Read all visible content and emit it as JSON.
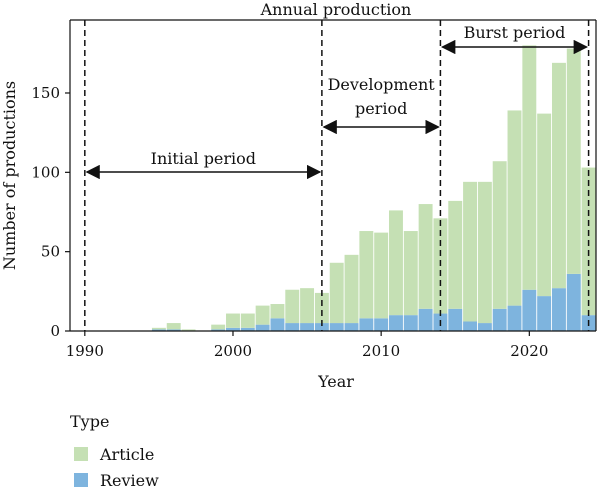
{
  "chart_data": {
    "type": "bar",
    "title": "Annual production",
    "xlabel": "Year",
    "ylabel": "Number of productions",
    "xlim": [
      1989,
      2024.5
    ],
    "ylim": [
      0,
      196
    ],
    "xticks": [
      1990,
      2000,
      2010,
      2020
    ],
    "yticks": [
      0,
      50,
      100,
      150
    ],
    "stacked": true,
    "grid": false,
    "legend_title": "Type",
    "legend_position": "bottom-left",
    "years": [
      1990,
      1991,
      1992,
      1993,
      1994,
      1995,
      1996,
      1997,
      1998,
      1999,
      2000,
      2001,
      2002,
      2003,
      2004,
      2005,
      2006,
      2007,
      2008,
      2009,
      2010,
      2011,
      2012,
      2013,
      2014,
      2015,
      2016,
      2017,
      2018,
      2019,
      2020,
      2021,
      2022,
      2023,
      2024
    ],
    "series": [
      {
        "name": "Article",
        "color": "#c5e0b4",
        "values": [
          0,
          0,
          0,
          0,
          0,
          1,
          4,
          1,
          0,
          3,
          9,
          9,
          12,
          9,
          21,
          22,
          19,
          38,
          43,
          55,
          54,
          66,
          53,
          66,
          60,
          68,
          88,
          89,
          93,
          123,
          154,
          115,
          142,
          142,
          93
        ]
      },
      {
        "name": "Review",
        "color": "#7eb4de",
        "values": [
          0,
          0,
          0,
          0,
          0,
          1,
          1,
          0,
          0,
          1,
          2,
          2,
          4,
          8,
          5,
          5,
          5,
          5,
          5,
          8,
          8,
          10,
          10,
          14,
          11,
          14,
          6,
          5,
          14,
          16,
          26,
          22,
          27,
          36,
          10
        ]
      }
    ],
    "periods": [
      {
        "label_lines": [
          "Initial period"
        ],
        "start": 1990,
        "end": 2006
      },
      {
        "label_lines": [
          "Development",
          "period"
        ],
        "start": 2006,
        "end": 2014
      },
      {
        "label_lines": [
          "Burst period"
        ],
        "start": 2014,
        "end": 2024
      }
    ]
  },
  "legend": {
    "title": "Type",
    "items": [
      {
        "label": "Article",
        "color": "#c5e0b4"
      },
      {
        "label": "Review",
        "color": "#7eb4de"
      }
    ]
  }
}
